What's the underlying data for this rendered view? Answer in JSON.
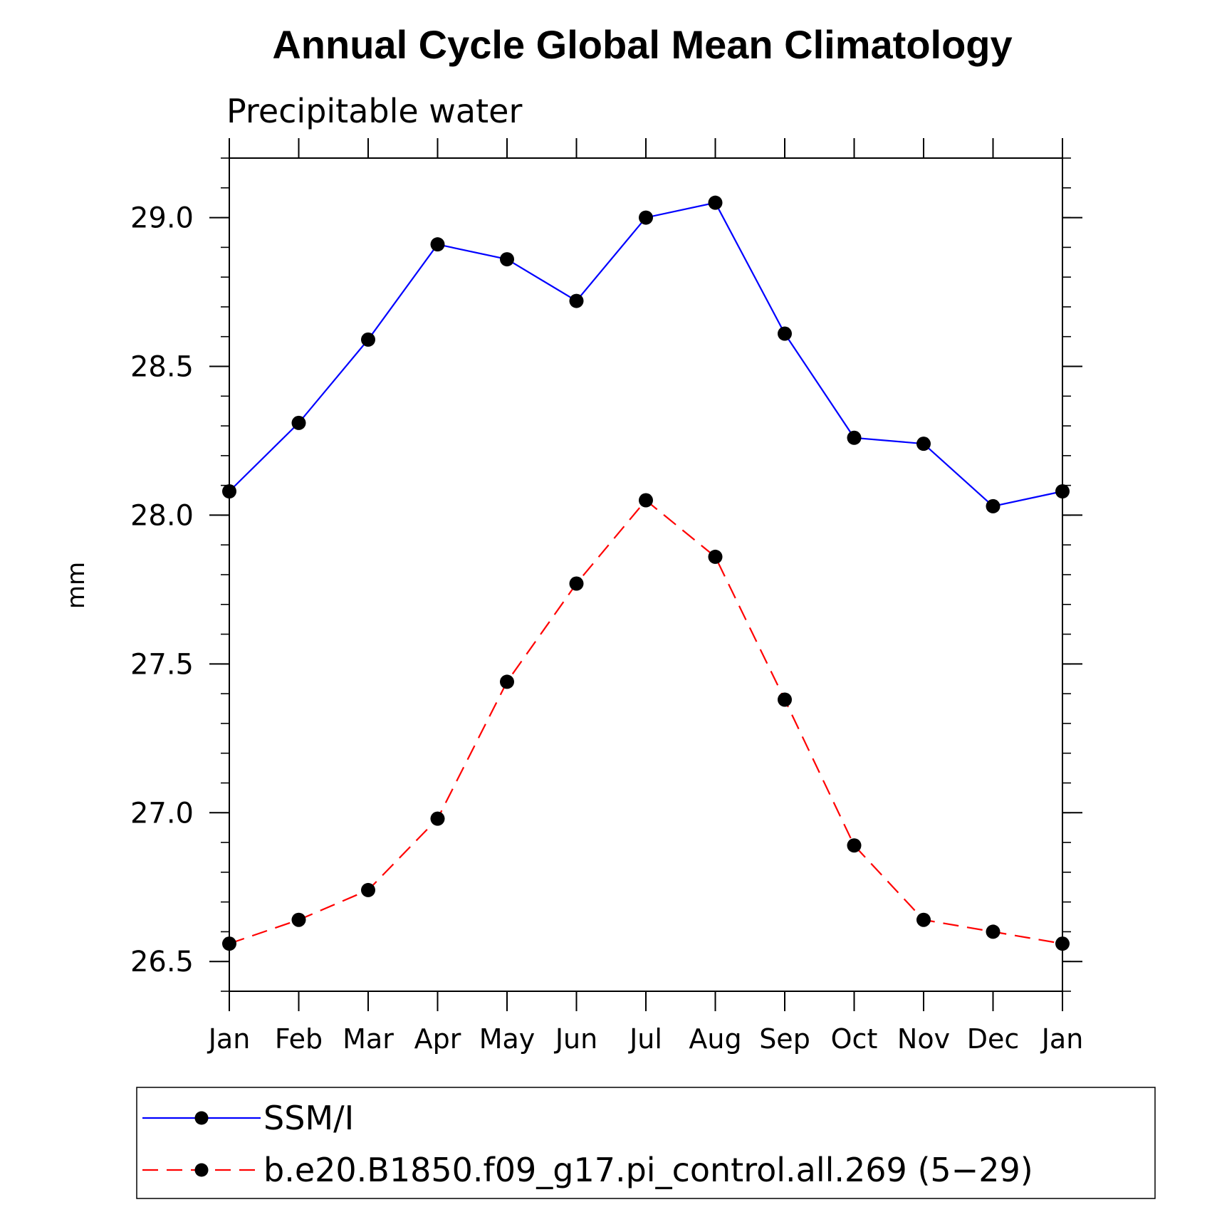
{
  "chart_data": {
    "type": "line",
    "title": "Annual Cycle Global Mean Climatology",
    "subtitle": "Precipitable water",
    "xlabel": "",
    "ylabel": "mm",
    "categories": [
      "Jan",
      "Feb",
      "Mar",
      "Apr",
      "May",
      "Jun",
      "Jul",
      "Aug",
      "Sep",
      "Oct",
      "Nov",
      "Dec",
      "Jan"
    ],
    "ylim": [
      26.4,
      29.2
    ],
    "yticks": [
      "26.5",
      "27.0",
      "27.5",
      "28.0",
      "28.5",
      "29.0"
    ],
    "ytick_values": [
      26.5,
      27.0,
      27.5,
      28.0,
      28.5,
      29.0
    ],
    "series": [
      {
        "name": "SSM/I",
        "color": "#0000ff",
        "style": "solid",
        "values": [
          28.08,
          28.31,
          28.59,
          28.91,
          28.86,
          28.72,
          29.0,
          29.05,
          28.61,
          28.26,
          28.24,
          28.03,
          28.08
        ]
      },
      {
        "name": "b.e20.B1850.f09_g17.pi_control.all.269 (5−29)",
        "color": "#ff0000",
        "style": "dashed",
        "values": [
          26.56,
          26.64,
          26.74,
          26.98,
          27.44,
          27.77,
          28.05,
          27.86,
          27.38,
          26.89,
          26.64,
          26.6,
          26.56
        ]
      }
    ],
    "legend_position": "bottom"
  }
}
